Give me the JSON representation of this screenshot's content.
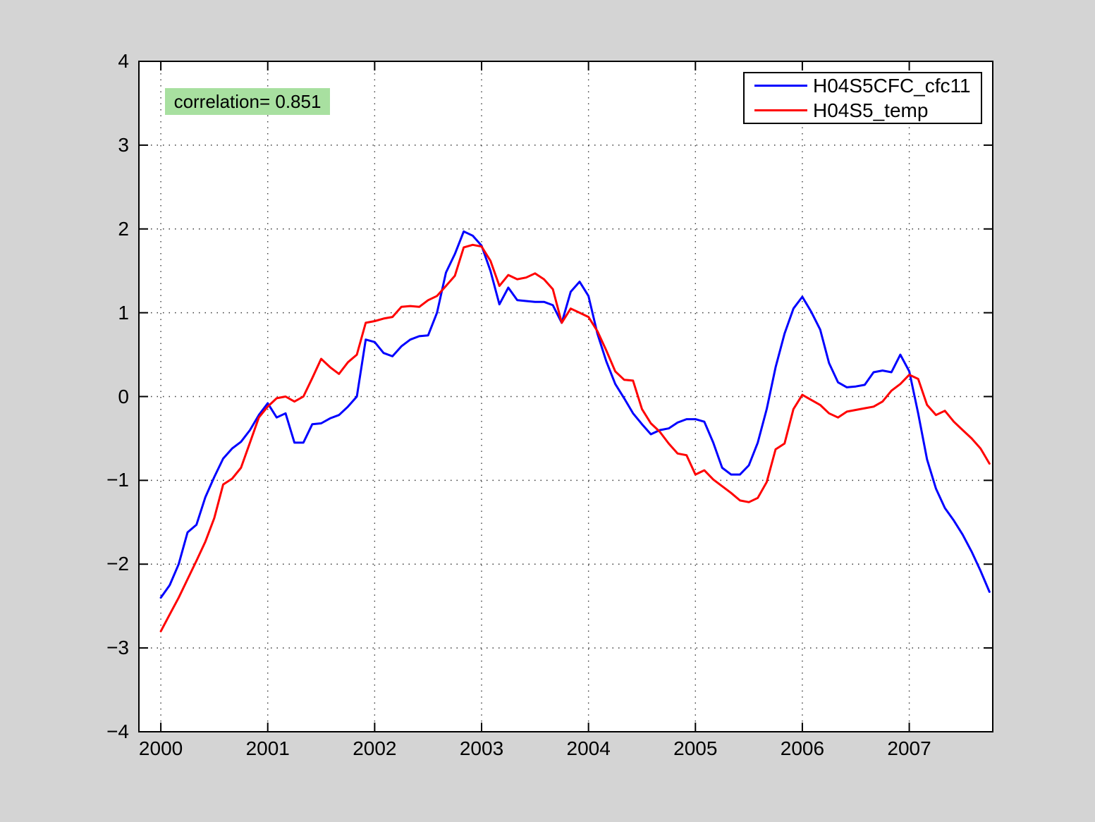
{
  "figure": {
    "background_color": "#d4d4d4",
    "plot_background_color": "#ffffff",
    "axis_color": "#000000"
  },
  "annotation": {
    "text": "correlation= 0.851",
    "background_color": "#a8e0a0"
  },
  "legend": {
    "entries": [
      {
        "label": "H04S5CFC_cfc11",
        "color": "#0000ff"
      },
      {
        "label": "H04S5_temp",
        "color": "#ff0000"
      }
    ],
    "position": "top-right"
  },
  "axes": {
    "x_tick_labels": [
      "2000",
      "2001",
      "2002",
      "2003",
      "2004",
      "2005",
      "2006",
      "2007"
    ],
    "y_tick_labels": [
      "4",
      "3",
      "2",
      "1",
      "0",
      "−1",
      "−2",
      "−3",
      "−4"
    ]
  },
  "chart_data": {
    "type": "line",
    "title": "",
    "xlabel": "",
    "ylabel": "",
    "grid": "dotted",
    "legend_position": "top-right",
    "xlim": [
      1999.795,
      2007.781
    ],
    "ylim": [
      -4,
      4
    ],
    "x_ticks": [
      2000,
      2001,
      2002,
      2003,
      2004,
      2005,
      2006,
      2007
    ],
    "y_ticks": [
      4,
      3,
      2,
      1,
      0,
      -1,
      -2,
      -3,
      -4
    ],
    "x_start": 2000.0,
    "x_step": 0.0833333,
    "annotation": {
      "text": "correlation= 0.851",
      "x": 2000.1,
      "y": 3.5
    },
    "series": [
      {
        "name": "H04S5CFC_cfc11",
        "color": "#0000ff",
        "values": [
          -2.4,
          -2.25,
          -2.0,
          -1.62,
          -1.53,
          -1.2,
          -0.96,
          -0.74,
          -0.62,
          -0.54,
          -0.4,
          -0.22,
          -0.08,
          -0.25,
          -0.2,
          -0.55,
          -0.55,
          -0.33,
          -0.32,
          -0.26,
          -0.22,
          -0.12,
          0.0,
          0.68,
          0.65,
          0.52,
          0.48,
          0.6,
          0.68,
          0.72,
          0.73,
          1.0,
          1.48,
          1.7,
          1.97,
          1.92,
          1.8,
          1.5,
          1.1,
          1.3,
          1.15,
          1.14,
          1.13,
          1.13,
          1.09,
          0.88,
          1.25,
          1.37,
          1.2,
          0.75,
          0.42,
          0.15,
          -0.02,
          -0.2,
          -0.33,
          -0.45,
          -0.4,
          -0.38,
          -0.31,
          -0.27,
          -0.27,
          -0.3,
          -0.55,
          -0.85,
          -0.93,
          -0.93,
          -0.82,
          -0.55,
          -0.15,
          0.35,
          0.75,
          1.05,
          1.19,
          1.01,
          0.8,
          0.4,
          0.17,
          0.11,
          0.12,
          0.14,
          0.29,
          0.31,
          0.29,
          0.5,
          0.3,
          -0.2,
          -0.75,
          -1.1,
          -1.33,
          -1.48,
          -1.65,
          -1.85,
          -2.08,
          -2.33
        ]
      },
      {
        "name": "H04S5_temp",
        "color": "#ff0000",
        "values": [
          -2.8,
          -2.6,
          -2.4,
          -2.18,
          -1.96,
          -1.73,
          -1.45,
          -1.05,
          -0.98,
          -0.85,
          -0.55,
          -0.25,
          -0.12,
          -0.02,
          0.0,
          -0.06,
          0.0,
          0.22,
          0.45,
          0.35,
          0.27,
          0.41,
          0.5,
          0.88,
          0.9,
          0.93,
          0.95,
          1.07,
          1.08,
          1.07,
          1.15,
          1.2,
          1.32,
          1.44,
          1.78,
          1.81,
          1.79,
          1.62,
          1.32,
          1.45,
          1.4,
          1.42,
          1.47,
          1.4,
          1.28,
          0.88,
          1.05,
          1.0,
          0.95,
          0.78,
          0.55,
          0.3,
          0.2,
          0.19,
          -0.15,
          -0.32,
          -0.42,
          -0.56,
          -0.68,
          -0.7,
          -0.93,
          -0.88,
          -0.99,
          -1.07,
          -1.15,
          -1.24,
          -1.26,
          -1.21,
          -1.02,
          -0.63,
          -0.56,
          -0.15,
          0.02,
          -0.04,
          -0.1,
          -0.2,
          -0.25,
          -0.18,
          -0.16,
          -0.14,
          -0.12,
          -0.06,
          0.07,
          0.15,
          0.26,
          0.21,
          -0.1,
          -0.22,
          -0.17,
          -0.3,
          -0.4,
          -0.5,
          -0.62,
          -0.8
        ]
      }
    ]
  }
}
